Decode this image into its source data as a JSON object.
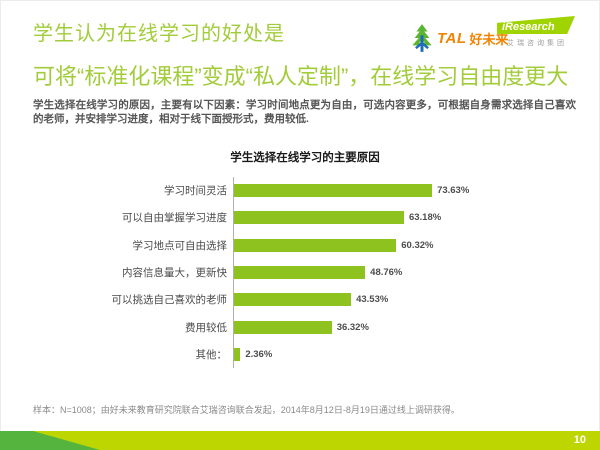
{
  "header": {
    "title_line1": "学生认为在线学习的好处是",
    "title_line2": "可将“标准化课程”变成“私人定制”，在线学习自由度更大",
    "accent_color": "#a2cc3a"
  },
  "logos": {
    "tal": {
      "text_en": "TAL",
      "text_cn": "好未来",
      "brand_color": "#f08300",
      "tree_green": "#5cb531",
      "tree_blue": "#1e6cb5"
    },
    "iresearch": {
      "text": "iResearch",
      "subtext": "艾瑞咨询集团",
      "banner_color": "#9fd400"
    }
  },
  "intro_text": "学生选择在线学习的原因，主要有以下因素：学习时间地点更为自由，可选内容更多，可根据自身需求选择自己喜欢的老师，并安排学习进度，相对于线下面授形式，费用较低.",
  "chart_data": {
    "type": "bar",
    "orientation": "horizontal",
    "title": "学生选择在线学习的主要原因",
    "categories": [
      "学习时间灵活",
      "可以自由掌握学习进度",
      "学习地点可自由选择",
      "内容信息量大，更新快",
      "可以挑选自己喜欢的老师",
      "费用较低",
      "其他："
    ],
    "values": [
      73.63,
      63.18,
      60.32,
      48.76,
      43.53,
      36.32,
      2.36
    ],
    "value_labels": [
      "73.63%",
      "63.18%",
      "60.32%",
      "48.76%",
      "43.53%",
      "36.32%",
      "2.36%"
    ],
    "bar_color": "#8ec31f",
    "xlim": [
      0,
      100
    ],
    "grid": false,
    "legend": false
  },
  "footer": {
    "note": "样本：N=1008；由好未来教育研究院联合艾瑞咨询联合发起，2014年8月12日-8月19日通过线上调研获得。",
    "page_number": "10",
    "bar_color": "#bdd500",
    "bar_accent_color": "#55b43e"
  }
}
